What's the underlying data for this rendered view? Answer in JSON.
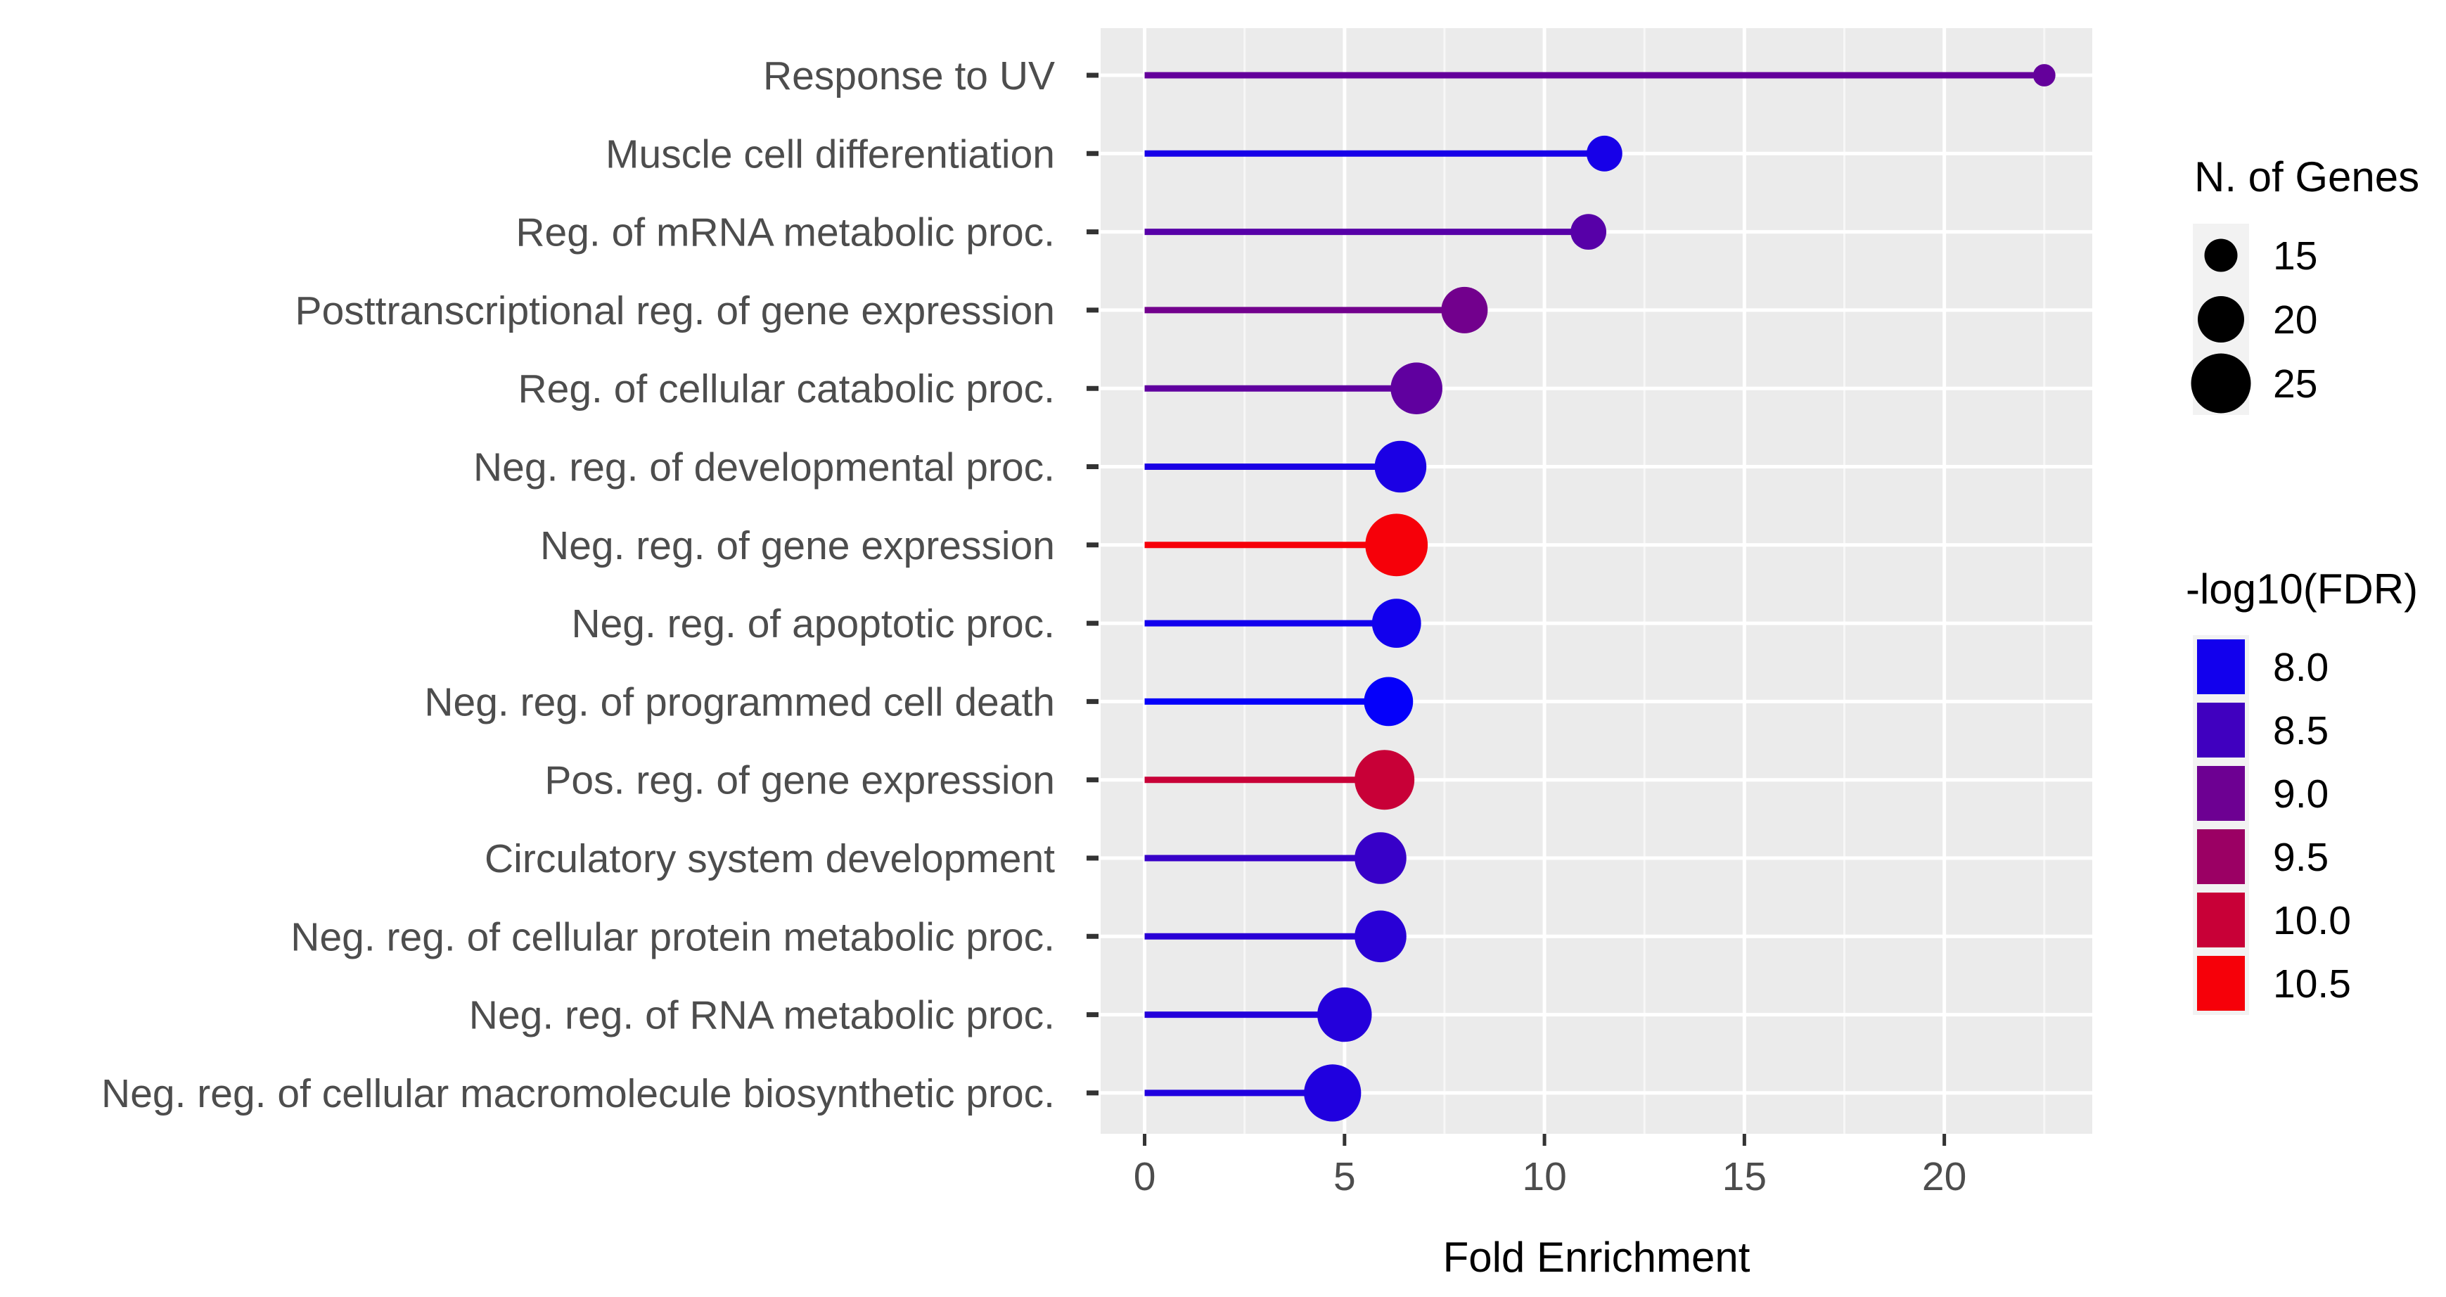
{
  "chart_data": {
    "type": "lollipop",
    "title": "",
    "xlabel": "Fold Enrichment",
    "ylabel": "",
    "xlim": [
      -1.1,
      23.7
    ],
    "xticks": [
      0,
      5,
      10,
      15,
      20
    ],
    "xtick_labels": [
      "0",
      "5",
      "10",
      "15",
      "20"
    ],
    "grid": true,
    "categories": [
      "Response to UV",
      "Muscle cell differentiation",
      "Reg. of mRNA metabolic proc.",
      "Posttranscriptional reg. of gene expression",
      "Reg. of cellular catabolic proc.",
      "Neg. reg. of developmental proc.",
      "Neg. reg. of gene expression",
      "Neg. reg. of apoptotic proc.",
      "Neg. reg. of programmed cell death",
      "Pos. reg. of gene expression",
      "Circulatory system development",
      "Neg. reg. of cellular protein metabolic proc.",
      "Neg. reg. of RNA metabolic proc.",
      "Neg. reg. of cellular macromolecule biosynthetic proc."
    ],
    "fold_enrichment": [
      22.5,
      11.5,
      11.1,
      8.0,
      6.8,
      6.4,
      6.3,
      6.3,
      6.1,
      6.0,
      5.9,
      5.9,
      5.0,
      4.7
    ],
    "n_genes": [
      11,
      16,
      16,
      20,
      22,
      22,
      26,
      21,
      21,
      25,
      22,
      22,
      23,
      24
    ],
    "neg_log10_fdr": [
      8.9,
      8.05,
      8.75,
      9.05,
      8.85,
      8.1,
      10.5,
      8.0,
      7.85,
      10.0,
      8.4,
      8.25,
      8.2,
      8.15
    ],
    "color_scale": {
      "low_value": 7.8,
      "high_value": 10.6,
      "low_color": "#0000ff",
      "high_color": "#ff0000"
    },
    "legend_size": {
      "title": "N. of Genes",
      "labels": [
        "15",
        "20",
        "25"
      ],
      "values": [
        15,
        20,
        25
      ]
    },
    "legend_color": {
      "title": "-log10(FDR)",
      "labels": [
        "8.0",
        "8.5",
        "9.0",
        "9.5",
        "10.0",
        "10.5"
      ],
      "values": [
        8.0,
        8.5,
        9.0,
        9.5,
        10.0,
        10.5
      ]
    },
    "legend_placement": "right"
  }
}
